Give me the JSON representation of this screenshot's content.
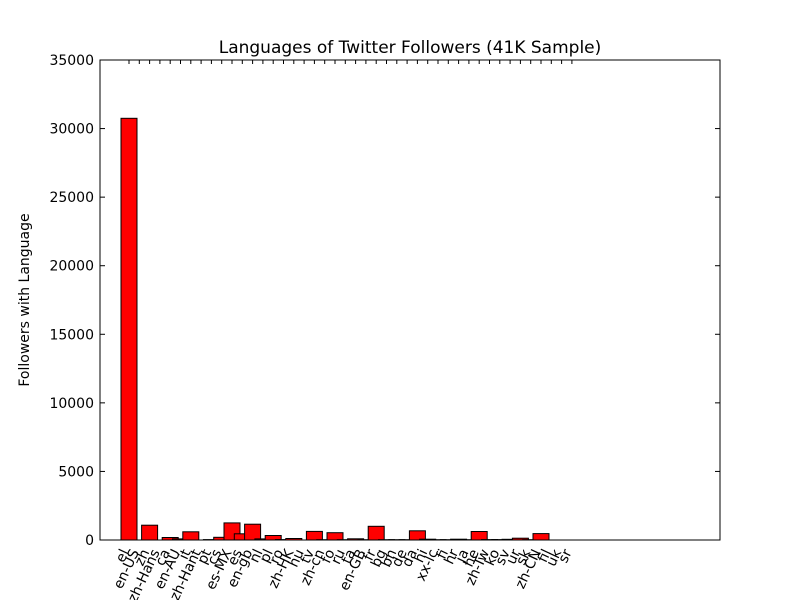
{
  "chart_data": {
    "type": "bar",
    "title": "Languages of Twitter Followers (41K Sample)",
    "xlabel": "",
    "ylabel": "Followers with Language",
    "ylim": [
      0,
      35000
    ],
    "yticks": [
      0,
      5000,
      10000,
      15000,
      20000,
      25000,
      30000,
      35000
    ],
    "grid": false,
    "bar_color": "#ff0000",
    "categories": [
      "el",
      "en-US",
      "zh",
      "zh-Hans",
      "ca",
      "en-AU",
      "it",
      "zh-Hant",
      "pt",
      "cs",
      "es-MX",
      "es",
      "en-gb",
      "nl",
      "pl",
      "ro",
      "zh-HK",
      "hu",
      "tv",
      "zh-cn",
      "fo",
      "ru",
      "ta",
      "en-GB",
      "fr",
      "bg",
      "bn",
      "de",
      "da",
      "hi",
      "xx-lc",
      "fi",
      "hr",
      "ja",
      "he",
      "zh-Tw",
      "ko",
      "sv",
      "ur",
      "sk",
      "zh-CN",
      "fil",
      "uk",
      "sr"
    ],
    "values": [
      30750,
      0,
      1080,
      0,
      180,
      80,
      600,
      0,
      30,
      200,
      1250,
      450,
      1150,
      80,
      330,
      30,
      110,
      0,
      630,
      20,
      530,
      20,
      90,
      20,
      1000,
      20,
      20,
      20,
      670,
      60,
      20,
      20,
      60,
      20,
      620,
      30,
      30,
      50,
      130,
      20,
      470,
      0,
      0,
      0
    ]
  }
}
